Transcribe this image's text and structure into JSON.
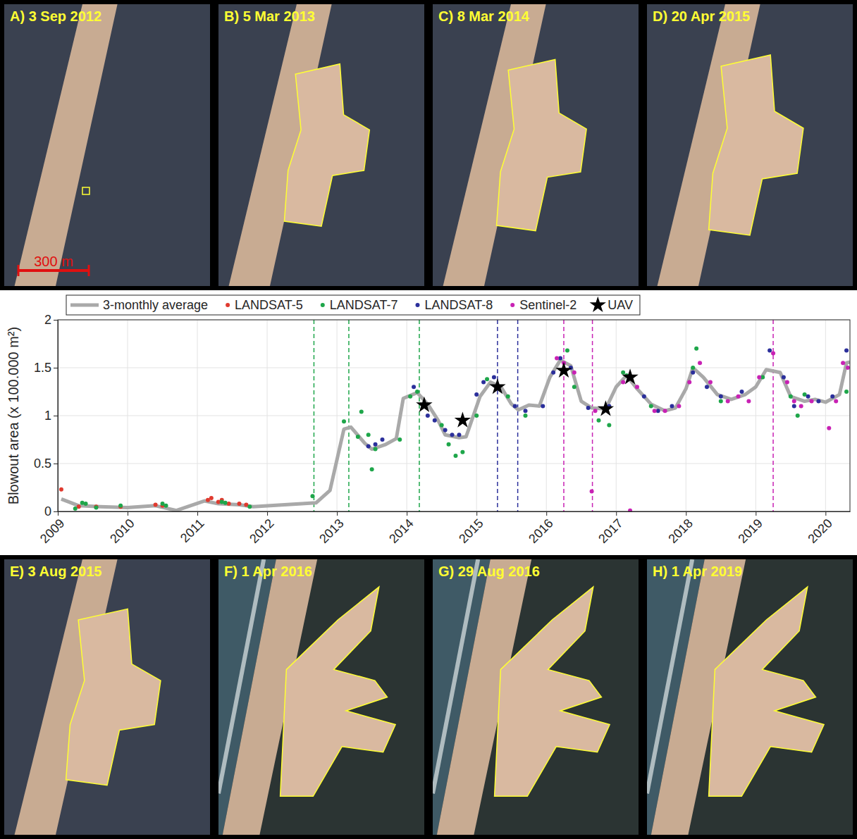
{
  "chart_data": {
    "type": "scatter",
    "ylabel": "Blowout area (x 100.000 m²)",
    "xlim": [
      2009,
      2020.35
    ],
    "xticks": [
      2009,
      2010,
      2011,
      2012,
      2013,
      2014,
      2015,
      2016,
      2017,
      2018,
      2019,
      2020
    ],
    "ylim": [
      0,
      2
    ],
    "yticks": [
      0,
      0.5,
      1,
      1.5,
      2
    ],
    "grid": true,
    "legend": "top",
    "series": [
      {
        "name": "3-monthly average",
        "type": "line",
        "color": "#a9a9a9",
        "line_style": "solid",
        "x": [
          2009.05,
          2009.3,
          2009.6,
          2010.0,
          2010.4,
          2010.7,
          2011.1,
          2011.3,
          2011.6,
          2011.8,
          2012.7,
          2012.9,
          2013.1,
          2013.2,
          2013.4,
          2013.5,
          2013.7,
          2013.85,
          2013.95,
          2014.15,
          2014.3,
          2014.45,
          2014.55,
          2014.75,
          2014.85,
          2015.05,
          2015.2,
          2015.35,
          2015.5,
          2015.6,
          2015.75,
          2015.9,
          2016.05,
          2016.2,
          2016.35,
          2016.5,
          2016.65,
          2016.85,
          2017.0,
          2017.15,
          2017.3,
          2017.5,
          2017.7,
          2017.85,
          2018.0,
          2018.1,
          2018.25,
          2018.45,
          2018.65,
          2018.85,
          2019.0,
          2019.15,
          2019.35,
          2019.5,
          2019.7,
          2019.85,
          2020.0,
          2020.2,
          2020.3,
          2020.35
        ],
        "values": [
          0.13,
          0.06,
          0.05,
          0.04,
          0.06,
          0.01,
          0.11,
          0.08,
          0.07,
          0.05,
          0.09,
          0.22,
          0.86,
          0.88,
          0.71,
          0.65,
          0.7,
          0.76,
          1.18,
          1.24,
          1.12,
          0.95,
          0.8,
          0.77,
          0.78,
          1.2,
          1.35,
          1.3,
          1.12,
          1.06,
          1.11,
          1.1,
          1.4,
          1.58,
          1.52,
          1.15,
          1.08,
          1.07,
          1.3,
          1.42,
          1.28,
          1.12,
          1.05,
          1.08,
          1.28,
          1.5,
          1.4,
          1.22,
          1.17,
          1.22,
          1.3,
          1.48,
          1.45,
          1.2,
          1.15,
          1.17,
          1.14,
          1.22,
          1.55,
          1.56
        ]
      },
      {
        "name": "LANDSAT-5",
        "type": "scatter",
        "marker": "circle",
        "color": "#e03a2f",
        "x": [
          2009.05,
          2009.3,
          2009.55,
          2009.9,
          2010.4,
          2010.5,
          2011.15,
          2011.2,
          2011.3,
          2011.35,
          2011.45,
          2011.6,
          2011.7
        ],
        "values": [
          0.23,
          0.05,
          0.05,
          0.05,
          0.07,
          0.06,
          0.12,
          0.14,
          0.1,
          0.12,
          0.08,
          0.08,
          0.07
        ]
      },
      {
        "name": "LANDSAT-7",
        "type": "scatter",
        "marker": "circle",
        "color": "#1ea64a",
        "x": [
          2009.25,
          2009.35,
          2009.4,
          2009.55,
          2009.9,
          2010.5,
          2010.55,
          2011.35,
          2011.4,
          2011.75,
          2012.65,
          2013.1,
          2013.3,
          2013.35,
          2013.45,
          2013.5,
          2013.55,
          2013.9,
          2014.05,
          2014.15,
          2014.5,
          2014.6,
          2014.7,
          2014.8,
          2015.0,
          2015.15,
          2015.45,
          2015.7,
          2016.3,
          2016.4,
          2016.75,
          2016.9,
          2017.1,
          2017.15,
          2017.5,
          2018.1,
          2018.15,
          2018.5,
          2019.1,
          2019.5,
          2019.6,
          2019.7,
          2020.3
        ],
        "values": [
          0.03,
          0.09,
          0.08,
          0.04,
          0.06,
          0.08,
          0.06,
          0.1,
          0.09,
          0.05,
          0.16,
          0.94,
          0.78,
          1.04,
          0.8,
          0.44,
          0.65,
          0.75,
          1.2,
          1.25,
          0.9,
          0.7,
          0.58,
          0.62,
          1.0,
          1.38,
          1.2,
          1.0,
          1.68,
          1.3,
          0.95,
          0.9,
          1.45,
          1.42,
          1.1,
          1.5,
          1.7,
          1.15,
          1.4,
          1.2,
          1.0,
          1.22,
          1.25
        ]
      },
      {
        "name": "LANDSAT-8",
        "type": "scatter",
        "marker": "circle",
        "color": "#2b2f9b",
        "x": [
          2013.45,
          2013.55,
          2013.65,
          2014.1,
          2014.3,
          2014.4,
          2014.55,
          2014.65,
          2014.75,
          2015.0,
          2015.1,
          2015.25,
          2015.55,
          2015.7,
          2015.95,
          2016.1,
          2016.2,
          2016.35,
          2016.6,
          2016.9,
          2017.2,
          2017.4,
          2017.6,
          2017.8,
          2018.1,
          2018.3,
          2018.5,
          2018.8,
          2019.2,
          2019.4,
          2019.55,
          2019.75,
          2019.9,
          2020.1,
          2020.3
        ],
        "values": [
          0.68,
          0.7,
          0.75,
          1.3,
          1.0,
          0.95,
          0.85,
          0.8,
          0.8,
          1.22,
          1.35,
          1.4,
          1.1,
          1.05,
          1.1,
          1.45,
          1.6,
          1.5,
          1.08,
          1.1,
          1.4,
          1.2,
          1.05,
          1.1,
          1.45,
          1.3,
          1.2,
          1.25,
          1.68,
          1.4,
          1.1,
          1.2,
          1.15,
          1.2,
          1.68
        ]
      },
      {
        "name": "Sentinel-2",
        "type": "scatter",
        "marker": "circle",
        "color": "#c822b4",
        "x": [
          2016.15,
          2016.25,
          2016.4,
          2016.65,
          2016.7,
          2017.1,
          2017.2,
          2017.3,
          2017.55,
          2017.7,
          2017.9,
          2018.05,
          2018.2,
          2018.35,
          2018.6,
          2018.75,
          2018.9,
          2019.05,
          2019.25,
          2019.45,
          2019.55,
          2019.65,
          2019.8,
          2020.05,
          2020.15,
          2020.25,
          2020.32
        ],
        "values": [
          1.6,
          1.55,
          1.45,
          0.21,
          1.05,
          1.35,
          0.01,
          1.3,
          1.05,
          1.05,
          1.1,
          1.35,
          1.55,
          1.35,
          1.15,
          1.2,
          1.15,
          1.4,
          1.65,
          1.35,
          1.15,
          1.1,
          1.15,
          0.87,
          1.15,
          1.55,
          1.5
        ]
      },
      {
        "name": "UAV",
        "type": "scatter",
        "marker": "star",
        "color": "#000000",
        "x": [
          2014.25,
          2014.8,
          2015.3,
          2016.25,
          2016.85,
          2017.2
        ],
        "values": [
          1.11,
          0.95,
          1.3,
          1.47,
          1.07,
          1.4
        ]
      }
    ],
    "vertical_lines": [
      {
        "x": 2012.67,
        "color": "#1ea64a",
        "line_style": "dashed"
      },
      {
        "x": 2013.17,
        "color": "#1ea64a",
        "line_style": "dashed"
      },
      {
        "x": 2014.18,
        "color": "#1ea64a",
        "line_style": "dashed"
      },
      {
        "x": 2015.3,
        "color": "#2b2f9b",
        "line_style": "dashed"
      },
      {
        "x": 2015.59,
        "color": "#2b2f9b",
        "line_style": "dashed"
      },
      {
        "x": 2016.25,
        "color": "#c822b4",
        "line_style": "dashed"
      },
      {
        "x": 2016.66,
        "color": "#c822b4",
        "line_style": "dashed"
      },
      {
        "x": 2019.25,
        "color": "#c822b4",
        "line_style": "dashed"
      }
    ]
  },
  "panels": [
    {
      "label": "A) 3 Sep 2012"
    },
    {
      "label": "B) 5 Mar 2013"
    },
    {
      "label": "C) 8 Mar 2014"
    },
    {
      "label": "D) 20 Apr 2015"
    },
    {
      "label": "E) 3 Aug 2015"
    },
    {
      "label": "F) 1 Apr 2016"
    },
    {
      "label": "G) 29 Aug 2016"
    },
    {
      "label": "H) 1 Apr 2019"
    }
  ],
  "scale_bar": "300 m"
}
